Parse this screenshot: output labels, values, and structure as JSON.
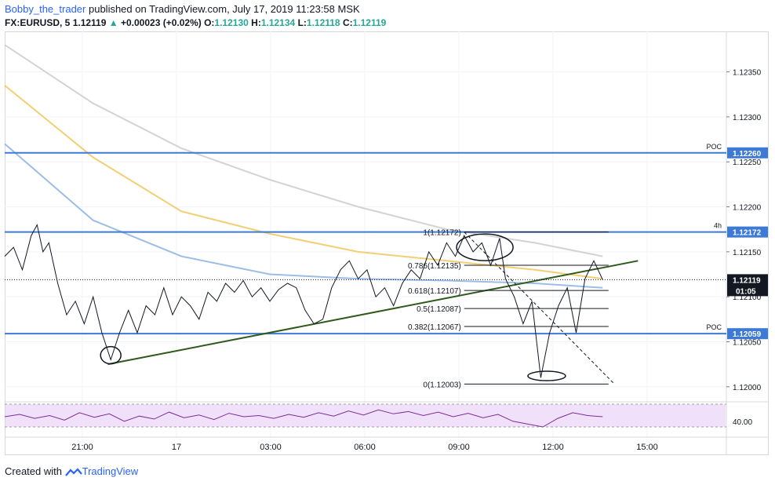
{
  "header": {
    "author": "Bobby_the_trader",
    "published_text": "published on TradingView.com, July 17, 2019 11:23:58 MSK"
  },
  "ticker": {
    "symbol": "FX:EURUSD, 5",
    "last": "1.12119",
    "change": "+0.00023 (+0.02%)",
    "open_label": "O:",
    "open": "1.12130",
    "high_label": "H:",
    "high": "1.12134",
    "low_label": "L:",
    "low": "1.12118",
    "close_label": "C:",
    "close": "1.12119"
  },
  "footer": {
    "created_with": "Created with",
    "brand": "TradingView"
  },
  "colors": {
    "price": "#131722",
    "horizontal_level": "#3d7ad6",
    "trendline": "#2f5a1c",
    "ma_gray": "#d3d3d3",
    "ma_yellow": "#f2cf73",
    "ma_blue": "#9bbde8",
    "rsi_line": "#7b2d99",
    "rsi_band": "#f0e0fa",
    "tag_bg": "#3d7ad6",
    "last_price_tag": "#131722"
  },
  "chart_data": {
    "type": "line",
    "symbol": "EURUSD",
    "timeframe": "5",
    "ylim": [
      1.11985,
      1.12395
    ],
    "y_ticks": [
      "1.12350",
      "1.12300",
      "1.12250",
      "1.12200",
      "1.12150",
      "1.12100",
      "1.12050",
      "1.12000"
    ],
    "x_ticks": [
      "21:00",
      "17",
      "03:00",
      "06:00",
      "09:00",
      "12:00",
      "15:00"
    ],
    "price_series": [
      [
        0,
        1.12145
      ],
      [
        0.3,
        1.12155
      ],
      [
        0.6,
        1.1213
      ],
      [
        0.9,
        1.12168
      ],
      [
        1.1,
        1.1218
      ],
      [
        1.3,
        1.1215
      ],
      [
        1.5,
        1.1216
      ],
      [
        1.8,
        1.12115
      ],
      [
        2.1,
        1.1208
      ],
      [
        2.4,
        1.12095
      ],
      [
        2.7,
        1.1207
      ],
      [
        3.0,
        1.121
      ],
      [
        3.3,
        1.1206
      ],
      [
        3.6,
        1.1203
      ],
      [
        3.9,
        1.1206
      ],
      [
        4.2,
        1.12085
      ],
      [
        4.5,
        1.1206
      ],
      [
        4.8,
        1.1209
      ],
      [
        5.1,
        1.1208
      ],
      [
        5.4,
        1.1211
      ],
      [
        5.7,
        1.1208
      ],
      [
        6.0,
        1.121
      ],
      [
        6.3,
        1.1209
      ],
      [
        6.6,
        1.12075
      ],
      [
        6.9,
        1.12105
      ],
      [
        7.2,
        1.12095
      ],
      [
        7.5,
        1.12115
      ],
      [
        7.8,
        1.12105
      ],
      [
        8.1,
        1.12118
      ],
      [
        8.4,
        1.121
      ],
      [
        8.7,
        1.1211
      ],
      [
        9.0,
        1.12095
      ],
      [
        9.3,
        1.12108
      ],
      [
        9.6,
        1.12115
      ],
      [
        9.9,
        1.1211
      ],
      [
        10.2,
        1.12085
      ],
      [
        10.5,
        1.1207
      ],
      [
        10.8,
        1.12075
      ],
      [
        11.1,
        1.1211
      ],
      [
        11.4,
        1.1213
      ],
      [
        11.7,
        1.1214
      ],
      [
        12.0,
        1.1212
      ],
      [
        12.3,
        1.1213
      ],
      [
        12.6,
        1.121
      ],
      [
        12.9,
        1.1211
      ],
      [
        13.2,
        1.1209
      ],
      [
        13.5,
        1.12115
      ],
      [
        13.8,
        1.1213
      ],
      [
        14.1,
        1.1212
      ],
      [
        14.4,
        1.1215
      ],
      [
        14.7,
        1.12135
      ],
      [
        15.0,
        1.1216
      ],
      [
        15.3,
        1.12145
      ],
      [
        15.6,
        1.12168
      ],
      [
        15.9,
        1.1215
      ],
      [
        16.2,
        1.1216
      ],
      [
        16.5,
        1.12135
      ],
      [
        16.8,
        1.12165
      ],
      [
        17.0,
        1.1212
      ],
      [
        17.3,
        1.121
      ],
      [
        17.6,
        1.1207
      ],
      [
        17.9,
        1.12095
      ],
      [
        18.2,
        1.1201
      ],
      [
        18.5,
        1.1206
      ],
      [
        18.8,
        1.1209
      ],
      [
        19.1,
        1.1211
      ],
      [
        19.4,
        1.1206
      ],
      [
        19.7,
        1.1212
      ],
      [
        20.0,
        1.1214
      ],
      [
        20.3,
        1.12119
      ]
    ],
    "moving_averages": [
      {
        "color": "#d3d3d3",
        "values": [
          [
            0,
            1.1238
          ],
          [
            3,
            1.12315
          ],
          [
            6,
            1.12265
          ],
          [
            9,
            1.1223
          ],
          [
            12,
            1.122
          ],
          [
            15,
            1.12175
          ],
          [
            18,
            1.1216
          ],
          [
            20.3,
            1.12145
          ]
        ]
      },
      {
        "color": "#f2cf73",
        "values": [
          [
            0,
            1.12335
          ],
          [
            3,
            1.12255
          ],
          [
            6,
            1.12195
          ],
          [
            9,
            1.1217
          ],
          [
            12,
            1.1215
          ],
          [
            15,
            1.1214
          ],
          [
            18,
            1.1213
          ],
          [
            20.3,
            1.1212
          ]
        ]
      },
      {
        "color": "#9bbde8",
        "values": [
          [
            0,
            1.1227
          ],
          [
            3,
            1.12185
          ],
          [
            6,
            1.12145
          ],
          [
            9,
            1.12125
          ],
          [
            12,
            1.1212
          ],
          [
            15,
            1.12118
          ],
          [
            18,
            1.12115
          ],
          [
            20.3,
            1.1211
          ]
        ]
      }
    ],
    "horizontal_levels": [
      {
        "price": 1.1226,
        "label": "1.12260",
        "tag": "POC"
      },
      {
        "price": 1.12172,
        "label": "1.12172",
        "tag": "4h"
      },
      {
        "price": 1.12059,
        "label": "1.12059",
        "tag": "POC"
      }
    ],
    "last_price": {
      "price": 1.12119,
      "label": "1.12119",
      "countdown": "01:05"
    },
    "fibonacci": {
      "levels": [
        {
          "ratio": 1,
          "label": "1(1.12172)",
          "price": 1.12172
        },
        {
          "ratio": 0.786,
          "label": "0.786(1.12135)",
          "price": 1.12135
        },
        {
          "ratio": 0.618,
          "label": "0.618(1.12107)",
          "price": 1.12107
        },
        {
          "ratio": 0.5,
          "label": "0.5(1.12087)",
          "price": 1.12087
        },
        {
          "ratio": 0.382,
          "label": "0.382(1.12067)",
          "price": 1.12067
        },
        {
          "ratio": 0,
          "label": "0(1.12003)",
          "price": 1.12003
        }
      ],
      "start_x": 15.6,
      "end_x": 20.5,
      "diagonal": [
        [
          15.6,
          1.12172
        ],
        [
          20.7,
          1.12003
        ]
      ]
    },
    "trendline": [
      [
        3.5,
        1.12025
      ],
      [
        21.5,
        1.1214
      ]
    ],
    "rsi": {
      "tick": "40.00",
      "series": [
        48,
        52,
        45,
        50,
        42,
        55,
        47,
        53,
        40,
        49,
        44,
        56,
        46,
        51,
        43,
        54,
        48,
        50,
        45,
        52,
        47,
        55,
        49,
        58,
        51,
        60,
        53,
        57,
        50,
        56,
        48,
        54,
        46,
        52,
        40,
        35,
        30,
        45,
        55,
        50,
        48
      ]
    }
  }
}
